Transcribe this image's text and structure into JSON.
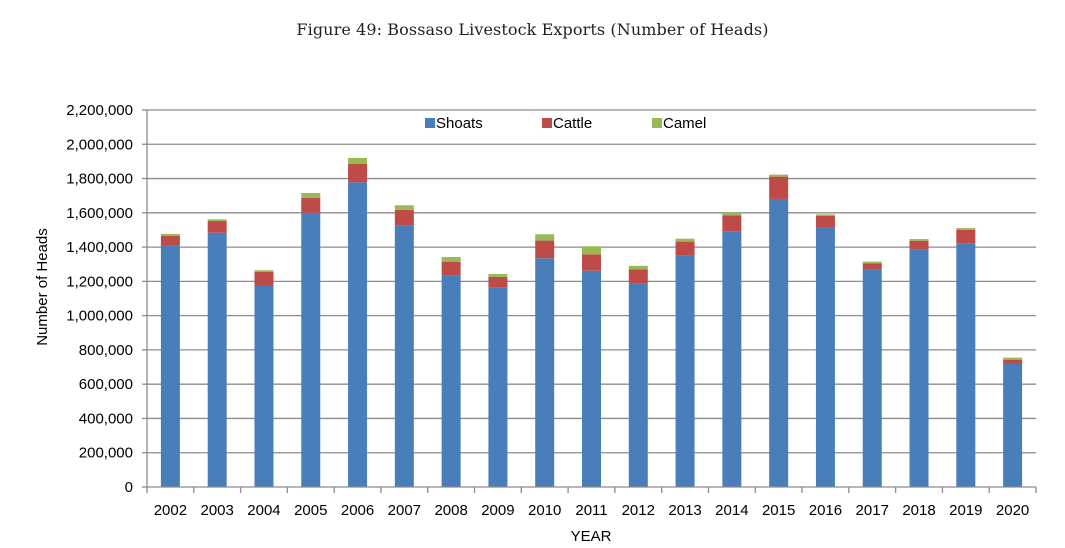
{
  "chart_data": {
    "type": "bar",
    "stacked": true,
    "title": "Figure 49: Bossaso Livestock Exports (Number of Heads)",
    "xlabel": "YEAR",
    "ylabel": "Number of Heads",
    "ylim": [
      0,
      2200000
    ],
    "yticks": [
      0,
      200000,
      400000,
      600000,
      800000,
      1000000,
      1200000,
      1400000,
      1600000,
      1800000,
      2000000,
      2200000
    ],
    "ytick_labels": [
      "0",
      "200,000",
      "400,000",
      "600,000",
      "800,000",
      "1,000,000",
      "1,200,000",
      "1,400,000",
      "1,600,000",
      "1,800,000",
      "2,000,000",
      "2,200,000"
    ],
    "grid": true,
    "legend_position": "top-center",
    "categories": [
      "2002",
      "2003",
      "2004",
      "2005",
      "2006",
      "2007",
      "2008",
      "2009",
      "2010",
      "2011",
      "2012",
      "2013",
      "2014",
      "2015",
      "2016",
      "2017",
      "2018",
      "2019",
      "2020"
    ],
    "series": [
      {
        "name": "Shoats",
        "color": "#4a7ebb",
        "values": [
          1407000,
          1484000,
          1173000,
          1600000,
          1778000,
          1527000,
          1233000,
          1163000,
          1335000,
          1262000,
          1190000,
          1350000,
          1492000,
          1681000,
          1512000,
          1270000,
          1387000,
          1422000,
          718000
        ]
      },
      {
        "name": "Cattle",
        "color": "#be4b48",
        "values": [
          58000,
          68000,
          82000,
          88000,
          107000,
          90000,
          82000,
          63000,
          103000,
          96000,
          80000,
          82000,
          93000,
          130000,
          70000,
          35000,
          50000,
          78000,
          25000
        ]
      },
      {
        "name": "Camel",
        "color": "#98b954",
        "values": [
          12000,
          10000,
          10000,
          28000,
          35000,
          27000,
          27000,
          17000,
          37000,
          47000,
          20000,
          17000,
          16000,
          12000,
          9000,
          10000,
          10000,
          11000,
          12000
        ]
      }
    ]
  }
}
